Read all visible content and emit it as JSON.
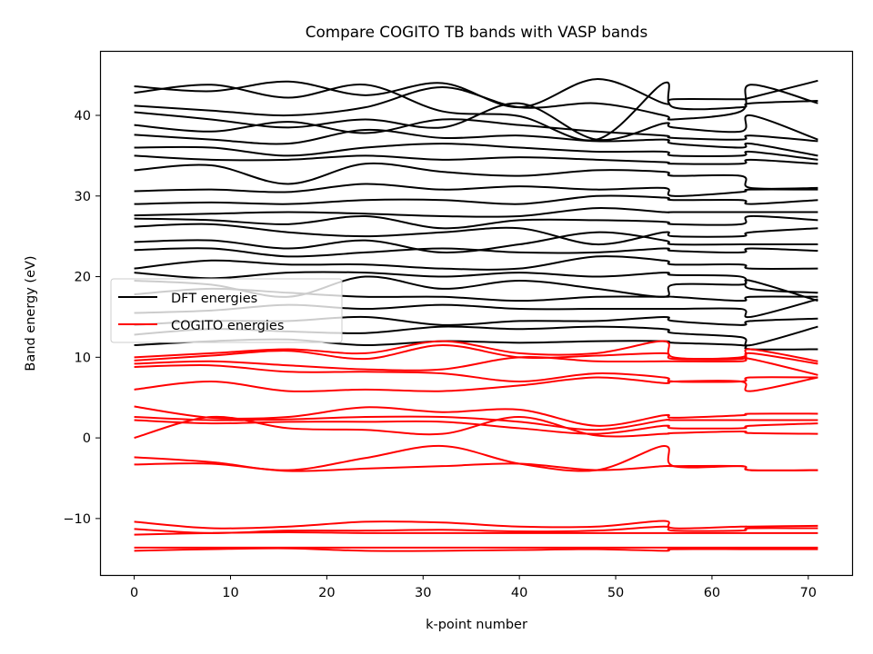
{
  "chart_data": {
    "type": "line",
    "title": "Compare COGITO TB bands with VASP bands",
    "xlabel": "k-point number",
    "ylabel": "Band energy (eV)",
    "xlim": [
      -3.55,
      74.55
    ],
    "ylim": [
      -17,
      48
    ],
    "xticks": [
      0,
      10,
      20,
      30,
      40,
      50,
      60,
      70
    ],
    "yticks": [
      -10,
      0,
      10,
      20,
      30,
      40
    ],
    "ytick_labels": [
      "−10",
      "0",
      "10",
      "20",
      "30",
      "40"
    ],
    "legend_position": "center-left",
    "grid": false,
    "colors": {
      "dft": "#000000",
      "cogito": "#ff0000"
    },
    "knots_x": [
      0,
      8,
      16,
      24,
      32,
      40,
      48,
      55,
      56,
      63,
      64,
      71
    ],
    "series": [
      {
        "name": "DFT energies",
        "color": "#000000",
        "bands": [
          [
            43.6,
            43.0,
            44.2,
            42.5,
            44.0,
            41.0,
            44.5,
            41.5,
            42.0,
            42.0,
            42.2,
            44.3
          ],
          [
            42.8,
            43.8,
            42.2,
            43.8,
            40.5,
            39.9,
            37.0,
            44.0,
            41.0,
            41.0,
            41.5,
            41.8
          ],
          [
            41.2,
            40.6,
            40.0,
            41.0,
            43.5,
            41.0,
            41.5,
            40.0,
            39.5,
            40.5,
            43.8,
            41.5
          ],
          [
            40.4,
            39.5,
            38.5,
            39.5,
            38.5,
            41.5,
            37.0,
            39.0,
            38.5,
            38.0,
            40.0,
            37.0
          ],
          [
            38.8,
            38.0,
            39.2,
            37.8,
            39.5,
            38.8,
            38.0,
            37.5,
            37.2,
            37.0,
            37.5,
            36.8
          ],
          [
            37.6,
            37.0,
            36.5,
            38.2,
            37.2,
            37.5,
            36.8,
            37.0,
            36.5,
            36.0,
            36.5,
            35.0
          ],
          [
            36.0,
            36.0,
            35.0,
            36.0,
            36.5,
            36.0,
            35.5,
            35.5,
            35.0,
            35.0,
            35.5,
            34.5
          ],
          [
            35.0,
            34.5,
            34.5,
            35.0,
            34.5,
            34.8,
            34.5,
            34.2,
            34.0,
            34.0,
            34.5,
            34.0
          ],
          [
            33.2,
            33.8,
            31.5,
            34.0,
            33.0,
            32.5,
            33.2,
            33.0,
            32.5,
            32.5,
            31.0,
            31.0
          ],
          [
            30.6,
            30.8,
            30.5,
            31.5,
            30.8,
            31.2,
            30.8,
            31.0,
            30.0,
            30.5,
            30.8,
            30.8
          ],
          [
            29.0,
            29.2,
            29.0,
            29.5,
            29.5,
            29.0,
            30.0,
            29.8,
            29.5,
            29.5,
            29.0,
            29.5
          ],
          [
            27.6,
            27.8,
            28.0,
            27.8,
            27.5,
            27.5,
            28.5,
            28.0,
            28.0,
            28.0,
            28.0,
            28.0
          ],
          [
            27.2,
            27.0,
            26.5,
            27.5,
            26.0,
            27.0,
            27.0,
            26.8,
            26.5,
            26.5,
            27.5,
            27.0
          ],
          [
            26.2,
            26.5,
            25.5,
            25.0,
            25.5,
            26.0,
            24.0,
            25.5,
            25.0,
            25.0,
            25.5,
            26.0
          ],
          [
            24.3,
            24.5,
            23.5,
            24.5,
            23.0,
            24.0,
            25.5,
            24.5,
            24.0,
            24.0,
            24.0,
            24.0
          ],
          [
            23.3,
            23.5,
            22.5,
            23.0,
            23.5,
            23.0,
            23.0,
            23.5,
            23.2,
            23.0,
            23.5,
            23.2
          ],
          [
            21.0,
            22.0,
            21.5,
            21.5,
            21.0,
            21.0,
            22.5,
            22.0,
            21.5,
            21.5,
            21.0,
            21.0
          ],
          [
            20.5,
            19.8,
            20.5,
            20.5,
            20.0,
            20.5,
            20.0,
            20.5,
            20.2,
            20.0,
            18.5,
            18.0
          ],
          [
            19.5,
            19.0,
            17.5,
            20.0,
            18.5,
            19.5,
            18.5,
            17.5,
            19.0,
            19.0,
            19.5,
            17.0
          ],
          [
            17.8,
            18.5,
            18.0,
            17.5,
            17.5,
            17.0,
            17.5,
            17.5,
            17.5,
            17.0,
            17.5,
            17.5
          ],
          [
            15.5,
            15.8,
            16.5,
            16.0,
            16.5,
            16.0,
            16.0,
            16.0,
            16.0,
            16.0,
            15.0,
            17.2
          ],
          [
            14.0,
            14.5,
            14.5,
            15.0,
            14.0,
            14.5,
            14.5,
            15.0,
            14.5,
            14.0,
            14.5,
            14.8
          ],
          [
            12.8,
            13.5,
            13.2,
            13.0,
            13.8,
            13.5,
            13.8,
            13.5,
            13.0,
            12.5,
            11.5,
            13.8
          ],
          [
            11.5,
            12.0,
            12.2,
            11.5,
            12.0,
            11.8,
            12.0,
            12.0,
            11.8,
            11.5,
            11.0,
            11.0
          ]
        ]
      },
      {
        "name": "COGITO energies",
        "color": "#ff0000",
        "bands": [
          [
            10.0,
            10.5,
            11.0,
            10.5,
            12.0,
            10.5,
            10.5,
            12.0,
            10.0,
            10.0,
            11.0,
            9.5
          ],
          [
            9.6,
            10.2,
            10.8,
            9.8,
            11.5,
            10.0,
            10.2,
            10.5,
            9.8,
            9.8,
            10.5,
            9.2
          ],
          [
            9.2,
            9.5,
            9.0,
            8.5,
            8.5,
            10.0,
            9.5,
            9.5,
            9.5,
            9.5,
            9.8,
            7.8
          ],
          [
            8.8,
            9.0,
            8.2,
            8.2,
            8.0,
            7.0,
            8.0,
            7.5,
            7.0,
            7.0,
            7.5,
            7.5
          ],
          [
            6.0,
            7.0,
            5.8,
            6.0,
            5.8,
            6.5,
            7.5,
            6.8,
            7.0,
            7.0,
            5.8,
            7.5
          ],
          [
            3.9,
            2.5,
            2.6,
            3.8,
            3.2,
            3.5,
            1.5,
            2.8,
            2.5,
            2.8,
            3.0,
            3.0
          ],
          [
            2.6,
            2.2,
            2.3,
            2.6,
            2.6,
            2.0,
            1.0,
            2.2,
            2.2,
            2.2,
            2.2,
            2.2
          ],
          [
            2.2,
            1.8,
            2.0,
            2.0,
            2.0,
            1.2,
            0.5,
            1.5,
            1.2,
            1.2,
            1.5,
            1.8
          ],
          [
            0.0,
            2.6,
            1.2,
            1.0,
            0.5,
            2.6,
            0.3,
            0.5,
            0.6,
            0.8,
            0.6,
            0.5
          ],
          [
            -2.4,
            -3.0,
            -4.0,
            -2.5,
            -1.0,
            -3.2,
            -4.0,
            -1.0,
            -3.5,
            -3.5,
            -4.0,
            -4.0
          ],
          [
            -3.3,
            -3.2,
            -4.1,
            -3.8,
            -3.5,
            -3.2,
            -4.0,
            -3.5,
            -3.5,
            -3.5,
            -4.0,
            -4.0
          ],
          [
            -10.4,
            -11.2,
            -11.0,
            -10.4,
            -10.5,
            -11.0,
            -11.0,
            -10.3,
            -11.2,
            -11.0,
            -11.0,
            -10.9
          ],
          [
            -11.3,
            -11.8,
            -11.5,
            -11.5,
            -11.4,
            -11.6,
            -11.5,
            -11.0,
            -11.5,
            -11.5,
            -11.2,
            -11.2
          ],
          [
            -12.0,
            -11.8,
            -11.7,
            -11.8,
            -11.8,
            -11.8,
            -11.8,
            -11.8,
            -11.8,
            -11.8,
            -11.8,
            -11.8
          ],
          [
            -13.6,
            -13.6,
            -13.6,
            -13.6,
            -13.6,
            -13.6,
            -13.6,
            -13.6,
            -13.6,
            -13.6,
            -13.6,
            -13.6
          ],
          [
            -14.0,
            -13.8,
            -13.7,
            -14.0,
            -14.0,
            -13.9,
            -13.8,
            -14.0,
            -13.8,
            -13.8,
            -13.8,
            -13.8
          ]
        ]
      }
    ]
  }
}
